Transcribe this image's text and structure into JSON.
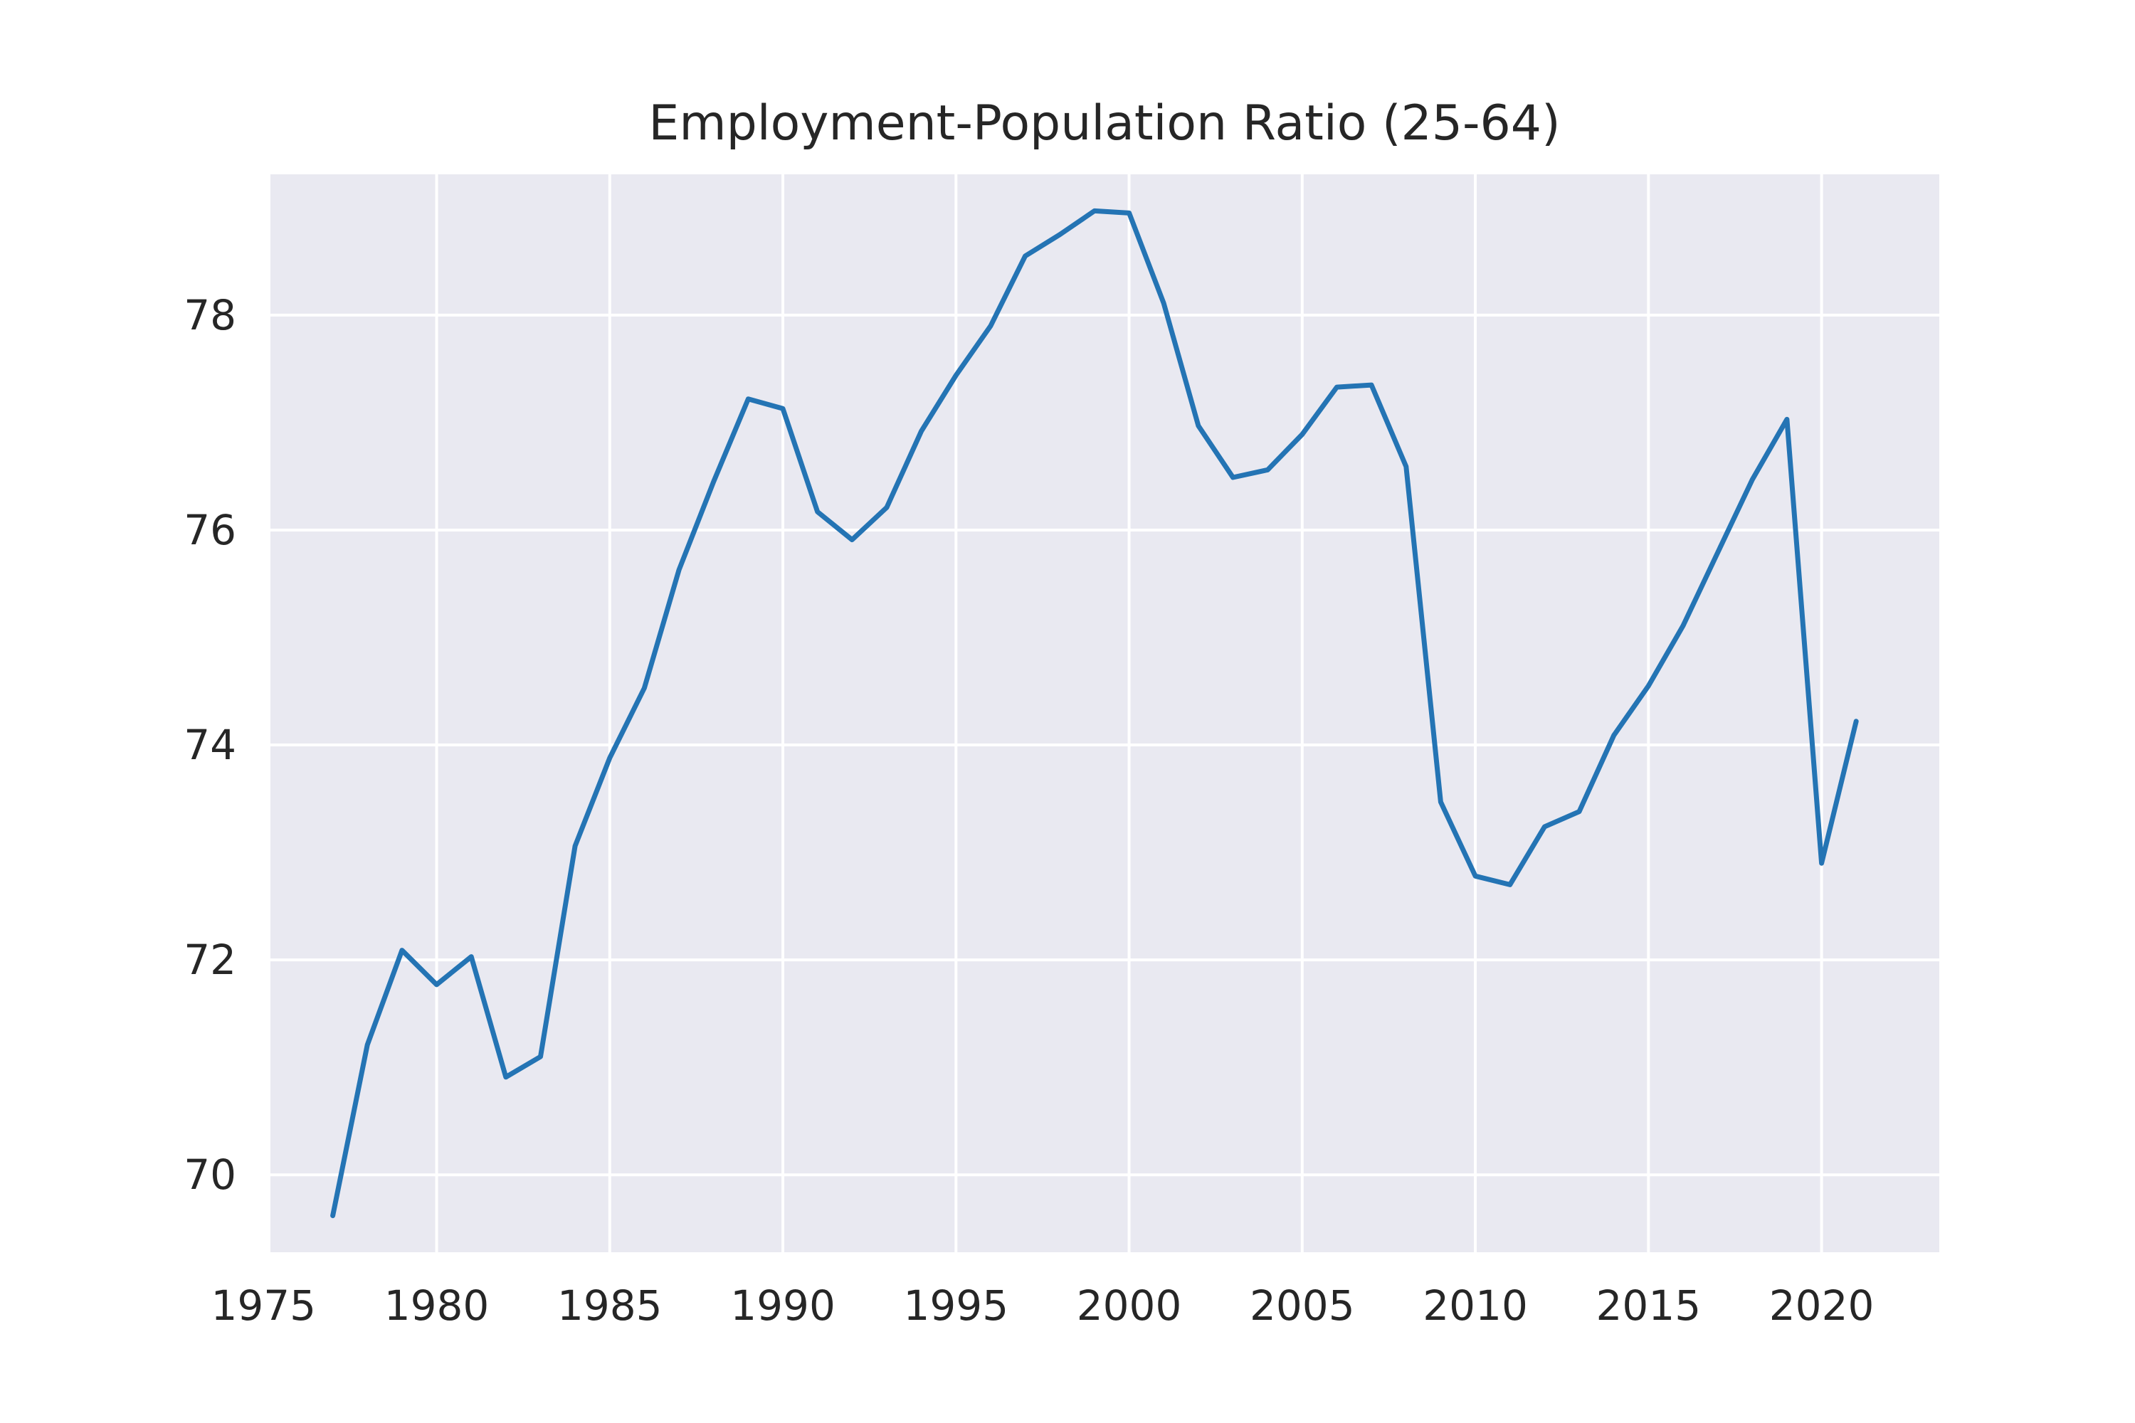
{
  "chart_data": {
    "type": "line",
    "title": "Employment-Population Ratio (25-64)",
    "xlabel": "",
    "ylabel": "",
    "x": [
      1977,
      1978,
      1979,
      1980,
      1981,
      1982,
      1983,
      1984,
      1985,
      1986,
      1987,
      1988,
      1989,
      1990,
      1991,
      1992,
      1993,
      1994,
      1995,
      1996,
      1997,
      1998,
      1999,
      2000,
      2001,
      2002,
      2003,
      2004,
      2005,
      2006,
      2007,
      2008,
      2009,
      2010,
      2011,
      2012,
      2013,
      2014,
      2015,
      2016,
      2017,
      2018,
      2019,
      2020,
      2021
    ],
    "series": [
      {
        "values": [
          69.62,
          71.21,
          72.09,
          71.77,
          72.03,
          70.91,
          71.1,
          73.06,
          73.88,
          74.53,
          75.63,
          76.45,
          77.22,
          77.13,
          76.17,
          75.91,
          76.21,
          76.92,
          77.44,
          77.9,
          78.55,
          78.75,
          78.97,
          78.95,
          78.11,
          76.97,
          76.49,
          76.56,
          76.89,
          77.33,
          77.35,
          76.59,
          73.47,
          72.78,
          72.7,
          73.24,
          73.38,
          74.09,
          74.55,
          75.11,
          75.79,
          76.47,
          77.03,
          72.9,
          74.22
        ]
      }
    ],
    "xticks": [
      1975,
      1980,
      1985,
      1990,
      1995,
      2000,
      2005,
      2010,
      2015,
      2020
    ],
    "yticks": [
      70,
      72,
      74,
      76,
      78
    ],
    "xlim": [
      1975.2,
      2023.4
    ],
    "ylim": [
      69.28,
      79.31
    ],
    "grid": true,
    "legend": "none",
    "colors": {
      "line": "#2474b4",
      "plot_background": "#e9e9f1",
      "grid": "#ffffff",
      "text": "#262626"
    }
  }
}
